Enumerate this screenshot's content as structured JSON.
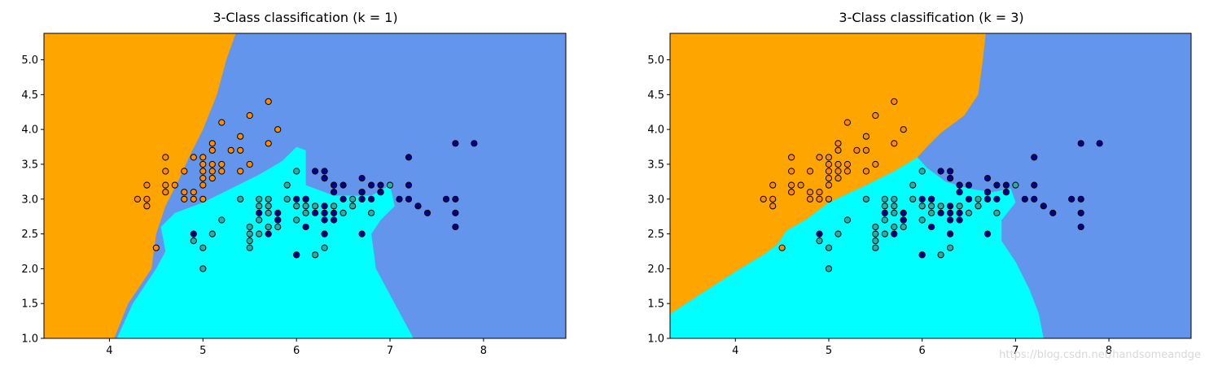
{
  "chart_data": [
    {
      "type": "scatter",
      "title": "3-Class classification (k = 1)",
      "xlabel": "",
      "ylabel": "",
      "xlim": [
        3.3,
        8.88
      ],
      "ylim": [
        1.0,
        5.38
      ],
      "xticks": [
        4,
        5,
        6,
        7,
        8
      ],
      "yticks": [
        1.0,
        1.5,
        2.0,
        2.5,
        3.0,
        3.5,
        4.0,
        4.5,
        5.0
      ],
      "region_colors": {
        "orange": "#FFA500",
        "cyan": "#00FFFF",
        "blue": "#6495ED"
      },
      "series": [
        {
          "color": "#FF8C00",
          "points": [
            [
              4.3,
              3.0
            ],
            [
              4.4,
              2.9
            ],
            [
              4.4,
              3.0
            ],
            [
              4.4,
              3.2
            ],
            [
              4.5,
              2.3
            ],
            [
              4.6,
              3.1
            ],
            [
              4.6,
              3.2
            ],
            [
              4.6,
              3.4
            ],
            [
              4.6,
              3.6
            ],
            [
              4.7,
              3.2
            ],
            [
              4.8,
              3.0
            ],
            [
              4.8,
              3.1
            ],
            [
              4.8,
              3.4
            ],
            [
              4.9,
              3.0
            ],
            [
              4.9,
              3.1
            ],
            [
              4.9,
              3.6
            ],
            [
              5.0,
              3.0
            ],
            [
              5.0,
              3.2
            ],
            [
              5.0,
              3.3
            ],
            [
              5.0,
              3.4
            ],
            [
              5.0,
              3.5
            ],
            [
              5.0,
              3.6
            ],
            [
              5.1,
              3.3
            ],
            [
              5.1,
              3.4
            ],
            [
              5.1,
              3.5
            ],
            [
              5.1,
              3.7
            ],
            [
              5.1,
              3.8
            ],
            [
              5.2,
              3.4
            ],
            [
              5.2,
              3.5
            ],
            [
              5.2,
              4.1
            ],
            [
              5.3,
              3.7
            ],
            [
              5.4,
              3.4
            ],
            [
              5.4,
              3.7
            ],
            [
              5.4,
              3.9
            ],
            [
              5.5,
              3.5
            ],
            [
              5.5,
              4.2
            ],
            [
              5.7,
              3.8
            ],
            [
              5.7,
              4.4
            ],
            [
              5.8,
              4.0
            ]
          ]
        },
        {
          "color": "#20B2AA",
          "points": [
            [
              4.9,
              2.4
            ],
            [
              5.0,
              2.0
            ],
            [
              5.0,
              2.3
            ],
            [
              5.1,
              2.5
            ],
            [
              5.2,
              2.7
            ],
            [
              5.4,
              3.0
            ],
            [
              5.5,
              2.3
            ],
            [
              5.5,
              2.4
            ],
            [
              5.5,
              2.5
            ],
            [
              5.5,
              2.6
            ],
            [
              5.6,
              2.5
            ],
            [
              5.6,
              2.7
            ],
            [
              5.6,
              2.9
            ],
            [
              5.6,
              3.0
            ],
            [
              5.7,
              2.6
            ],
            [
              5.7,
              2.8
            ],
            [
              5.7,
              2.9
            ],
            [
              5.7,
              3.0
            ],
            [
              5.8,
              2.6
            ],
            [
              5.8,
              2.7
            ],
            [
              5.9,
              3.0
            ],
            [
              5.9,
              3.2
            ],
            [
              6.0,
              2.2
            ],
            [
              6.0,
              2.7
            ],
            [
              6.0,
              2.9
            ],
            [
              6.0,
              3.4
            ],
            [
              6.1,
              2.8
            ],
            [
              6.1,
              2.9
            ],
            [
              6.1,
              3.0
            ],
            [
              6.2,
              2.2
            ],
            [
              6.2,
              2.9
            ],
            [
              6.3,
              2.3
            ],
            [
              6.3,
              2.5
            ],
            [
              6.3,
              3.3
            ],
            [
              6.4,
              2.9
            ],
            [
              6.4,
              3.2
            ],
            [
              6.5,
              2.8
            ],
            [
              6.6,
              2.9
            ],
            [
              6.6,
              3.0
            ],
            [
              6.7,
              3.0
            ],
            [
              6.7,
              3.1
            ],
            [
              6.8,
              2.8
            ],
            [
              6.9,
              3.1
            ],
            [
              7.0,
              3.2
            ]
          ]
        },
        {
          "color": "#00008B",
          "points": [
            [
              4.9,
              2.5
            ],
            [
              5.6,
              2.8
            ],
            [
              5.7,
              2.5
            ],
            [
              5.8,
              2.7
            ],
            [
              5.8,
              2.8
            ],
            [
              6.0,
              2.2
            ],
            [
              6.0,
              3.0
            ],
            [
              6.1,
              2.6
            ],
            [
              6.1,
              3.0
            ],
            [
              6.2,
              2.8
            ],
            [
              6.2,
              3.4
            ],
            [
              6.3,
              2.5
            ],
            [
              6.3,
              2.7
            ],
            [
              6.3,
              2.8
            ],
            [
              6.3,
              2.9
            ],
            [
              6.3,
              3.3
            ],
            [
              6.3,
              3.4
            ],
            [
              6.4,
              2.7
            ],
            [
              6.4,
              2.8
            ],
            [
              6.4,
              3.1
            ],
            [
              6.4,
              3.2
            ],
            [
              6.5,
              3.0
            ],
            [
              6.5,
              3.2
            ],
            [
              6.7,
              2.5
            ],
            [
              6.7,
              3.0
            ],
            [
              6.7,
              3.1
            ],
            [
              6.7,
              3.3
            ],
            [
              6.8,
              3.0
            ],
            [
              6.8,
              3.2
            ],
            [
              6.9,
              3.1
            ],
            [
              6.9,
              3.2
            ],
            [
              7.1,
              3.0
            ],
            [
              7.2,
              3.0
            ],
            [
              7.2,
              3.2
            ],
            [
              7.2,
              3.6
            ],
            [
              7.3,
              2.9
            ],
            [
              7.4,
              2.8
            ],
            [
              7.6,
              3.0
            ],
            [
              7.7,
              2.6
            ],
            [
              7.7,
              2.8
            ],
            [
              7.7,
              3.0
            ],
            [
              7.7,
              3.8
            ],
            [
              7.9,
              3.8
            ]
          ]
        }
      ]
    },
    {
      "type": "scatter",
      "title": "3-Class classification (k = 3)",
      "xlabel": "",
      "ylabel": "",
      "xlim": [
        3.3,
        8.88
      ],
      "ylim": [
        1.0,
        5.38
      ],
      "xticks": [
        4,
        5,
        6,
        7,
        8
      ],
      "yticks": [
        1.0,
        1.5,
        2.0,
        2.5,
        3.0,
        3.5,
        4.0,
        4.5,
        5.0
      ],
      "region_colors": {
        "orange": "#FFA500",
        "cyan": "#00FFFF",
        "blue": "#6495ED"
      },
      "series": [
        {
          "color": "#FF8C00",
          "points": [
            [
              4.3,
              3.0
            ],
            [
              4.4,
              2.9
            ],
            [
              4.4,
              3.0
            ],
            [
              4.4,
              3.2
            ],
            [
              4.5,
              2.3
            ],
            [
              4.6,
              3.1
            ],
            [
              4.6,
              3.2
            ],
            [
              4.6,
              3.4
            ],
            [
              4.6,
              3.6
            ],
            [
              4.7,
              3.2
            ],
            [
              4.8,
              3.0
            ],
            [
              4.8,
              3.1
            ],
            [
              4.8,
              3.4
            ],
            [
              4.9,
              3.0
            ],
            [
              4.9,
              3.1
            ],
            [
              4.9,
              3.6
            ],
            [
              5.0,
              3.0
            ],
            [
              5.0,
              3.2
            ],
            [
              5.0,
              3.3
            ],
            [
              5.0,
              3.4
            ],
            [
              5.0,
              3.5
            ],
            [
              5.0,
              3.6
            ],
            [
              5.1,
              3.3
            ],
            [
              5.1,
              3.4
            ],
            [
              5.1,
              3.5
            ],
            [
              5.1,
              3.7
            ],
            [
              5.1,
              3.8
            ],
            [
              5.2,
              3.4
            ],
            [
              5.2,
              3.5
            ],
            [
              5.2,
              4.1
            ],
            [
              5.3,
              3.7
            ],
            [
              5.4,
              3.4
            ],
            [
              5.4,
              3.7
            ],
            [
              5.4,
              3.9
            ],
            [
              5.5,
              3.5
            ],
            [
              5.5,
              4.2
            ],
            [
              5.7,
              3.8
            ],
            [
              5.7,
              4.4
            ],
            [
              5.8,
              4.0
            ]
          ]
        },
        {
          "color": "#20B2AA",
          "points": [
            [
              4.9,
              2.4
            ],
            [
              5.0,
              2.0
            ],
            [
              5.0,
              2.3
            ],
            [
              5.1,
              2.5
            ],
            [
              5.2,
              2.7
            ],
            [
              5.4,
              3.0
            ],
            [
              5.5,
              2.3
            ],
            [
              5.5,
              2.4
            ],
            [
              5.5,
              2.5
            ],
            [
              5.5,
              2.6
            ],
            [
              5.6,
              2.5
            ],
            [
              5.6,
              2.7
            ],
            [
              5.6,
              2.9
            ],
            [
              5.6,
              3.0
            ],
            [
              5.7,
              2.6
            ],
            [
              5.7,
              2.8
            ],
            [
              5.7,
              2.9
            ],
            [
              5.7,
              3.0
            ],
            [
              5.8,
              2.6
            ],
            [
              5.8,
              2.7
            ],
            [
              5.9,
              3.0
            ],
            [
              5.9,
              3.2
            ],
            [
              6.0,
              2.2
            ],
            [
              6.0,
              2.7
            ],
            [
              6.0,
              2.9
            ],
            [
              6.0,
              3.4
            ],
            [
              6.1,
              2.8
            ],
            [
              6.1,
              2.9
            ],
            [
              6.1,
              3.0
            ],
            [
              6.2,
              2.2
            ],
            [
              6.2,
              2.9
            ],
            [
              6.3,
              2.3
            ],
            [
              6.3,
              2.5
            ],
            [
              6.3,
              3.3
            ],
            [
              6.4,
              2.9
            ],
            [
              6.4,
              3.2
            ],
            [
              6.5,
              2.8
            ],
            [
              6.6,
              2.9
            ],
            [
              6.6,
              3.0
            ],
            [
              6.7,
              3.0
            ],
            [
              6.7,
              3.1
            ],
            [
              6.8,
              2.8
            ],
            [
              6.9,
              3.1
            ],
            [
              7.0,
              3.2
            ]
          ]
        },
        {
          "color": "#00008B",
          "points": [
            [
              4.9,
              2.5
            ],
            [
              5.6,
              2.8
            ],
            [
              5.7,
              2.5
            ],
            [
              5.8,
              2.7
            ],
            [
              5.8,
              2.8
            ],
            [
              6.0,
              2.2
            ],
            [
              6.0,
              3.0
            ],
            [
              6.1,
              2.6
            ],
            [
              6.1,
              3.0
            ],
            [
              6.2,
              2.8
            ],
            [
              6.2,
              3.4
            ],
            [
              6.3,
              2.5
            ],
            [
              6.3,
              2.7
            ],
            [
              6.3,
              2.8
            ],
            [
              6.3,
              2.9
            ],
            [
              6.3,
              3.3
            ],
            [
              6.3,
              3.4
            ],
            [
              6.4,
              2.7
            ],
            [
              6.4,
              2.8
            ],
            [
              6.4,
              3.1
            ],
            [
              6.4,
              3.2
            ],
            [
              6.5,
              3.0
            ],
            [
              6.5,
              3.2
            ],
            [
              6.7,
              2.5
            ],
            [
              6.7,
              3.0
            ],
            [
              6.7,
              3.1
            ],
            [
              6.7,
              3.3
            ],
            [
              6.8,
              3.0
            ],
            [
              6.8,
              3.2
            ],
            [
              6.9,
              3.1
            ],
            [
              6.9,
              3.2
            ],
            [
              7.1,
              3.0
            ],
            [
              7.2,
              3.0
            ],
            [
              7.2,
              3.2
            ],
            [
              7.2,
              3.6
            ],
            [
              7.3,
              2.9
            ],
            [
              7.4,
              2.8
            ],
            [
              7.6,
              3.0
            ],
            [
              7.7,
              2.6
            ],
            [
              7.7,
              2.8
            ],
            [
              7.7,
              3.0
            ],
            [
              7.7,
              3.8
            ],
            [
              7.9,
              3.8
            ]
          ]
        }
      ]
    }
  ],
  "watermark": "https://blog.csdn.net/handsomeandge"
}
